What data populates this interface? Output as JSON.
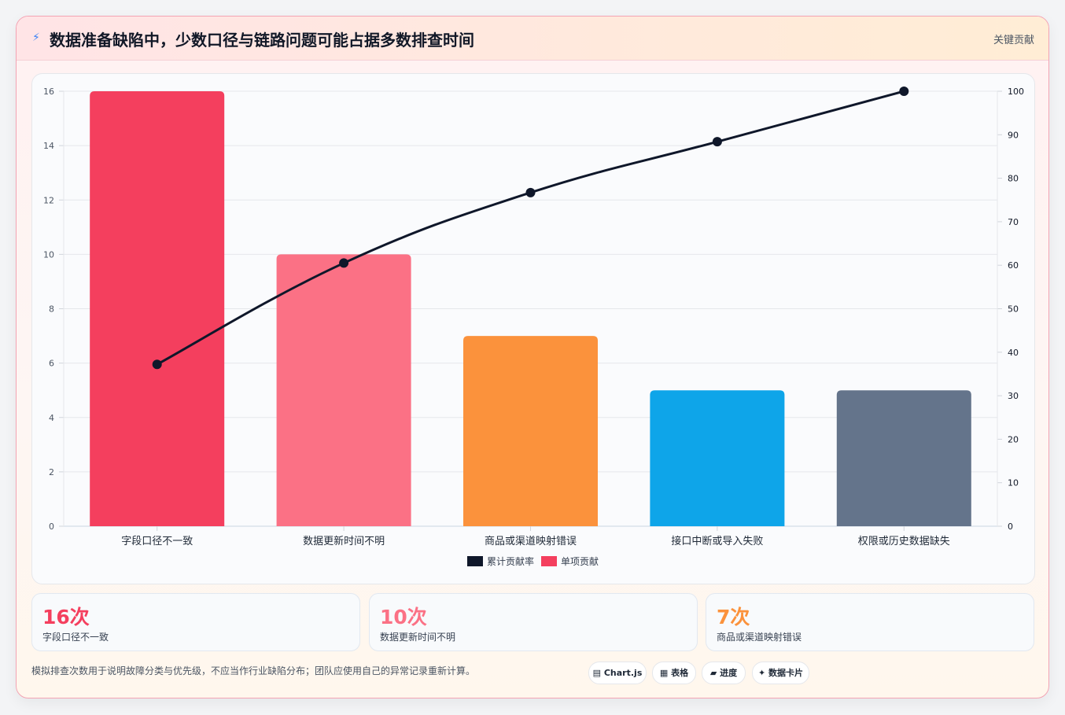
{
  "header": {
    "icon": "lightning-icon",
    "title": "数据准备缺陷中，少数口径与链路问题可能占据多数排查时间",
    "tag": "关键贡献"
  },
  "chart_data": {
    "type": "bar",
    "categories": [
      "字段口径不一致",
      "数据更新时间不明",
      "商品或渠道映射错误",
      "接口中断或导入失败",
      "权限或历史数据缺失"
    ],
    "series": [
      {
        "name": "单项贡献",
        "type": "bar",
        "axis": "left",
        "values": [
          16,
          10,
          7,
          5,
          5
        ],
        "colors": [
          "#f43f5e",
          "#fb7185",
          "#fb923c",
          "#0ea5e9",
          "#64748b"
        ]
      },
      {
        "name": "累计贡献率",
        "type": "line",
        "axis": "right",
        "values": [
          37.2,
          60.5,
          76.7,
          88.4,
          100
        ],
        "color": "#0f172a"
      }
    ],
    "ylim": [
      0,
      16
    ],
    "yticks": [
      0,
      2,
      4,
      6,
      8,
      10,
      12,
      14,
      16
    ],
    "y2lim": [
      0,
      100
    ],
    "y2ticks": [
      0,
      10,
      20,
      30,
      40,
      50,
      60,
      70,
      80,
      90,
      100
    ],
    "legend": {
      "position": "bottom",
      "entries": [
        "累计贡献率",
        "单项贡献"
      ]
    },
    "grid": true
  },
  "stats": [
    {
      "value": "16次",
      "label": "字段口径不一致",
      "color": "#f43f5e"
    },
    {
      "value": "10次",
      "label": "数据更新时间不明",
      "color": "#fb7185"
    },
    {
      "value": "7次",
      "label": "商品或渠道映射错误",
      "color": "#fb923c"
    }
  ],
  "footer": {
    "note": "模拟排查次数用于说明故障分类与优先级，不应当作行业缺陷分布；团队应使用自己的异常记录重新计算。",
    "pills": [
      {
        "icon": "chart-icon",
        "glyph": "▤",
        "label": "Chart.js"
      },
      {
        "icon": "table-icon",
        "glyph": "▦",
        "label": "表格"
      },
      {
        "icon": "progress-icon",
        "glyph": "▰",
        "label": "进度"
      },
      {
        "icon": "sparkle-icon",
        "glyph": "✦",
        "label": "数据卡片"
      }
    ]
  }
}
